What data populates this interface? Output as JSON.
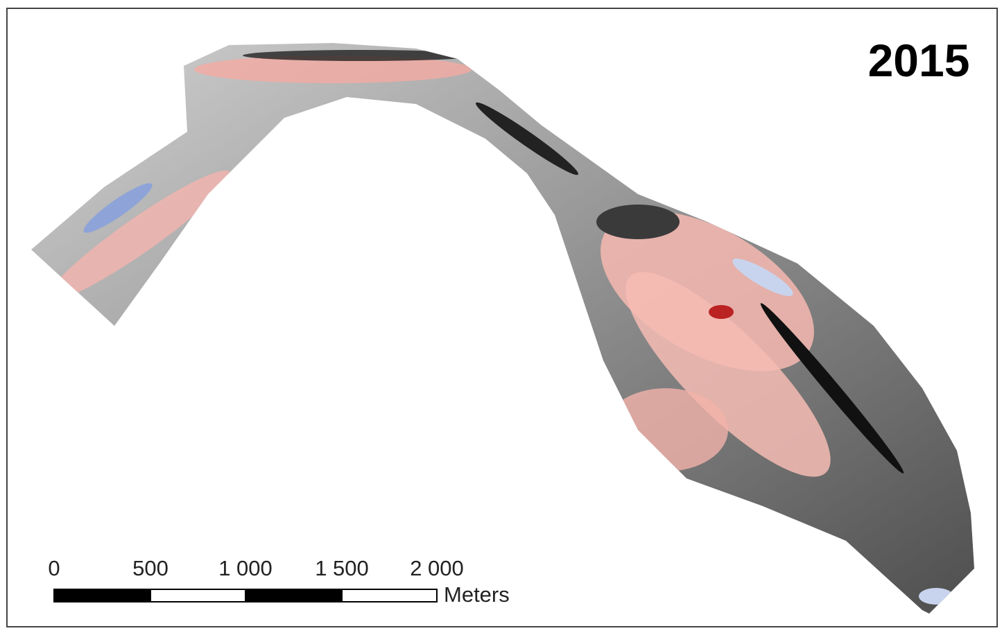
{
  "map": {
    "year": "2015",
    "scale_bar": {
      "labels": [
        "0",
        "500",
        "1 000",
        "1 500",
        "2 000"
      ],
      "unit": "Meters"
    }
  }
}
